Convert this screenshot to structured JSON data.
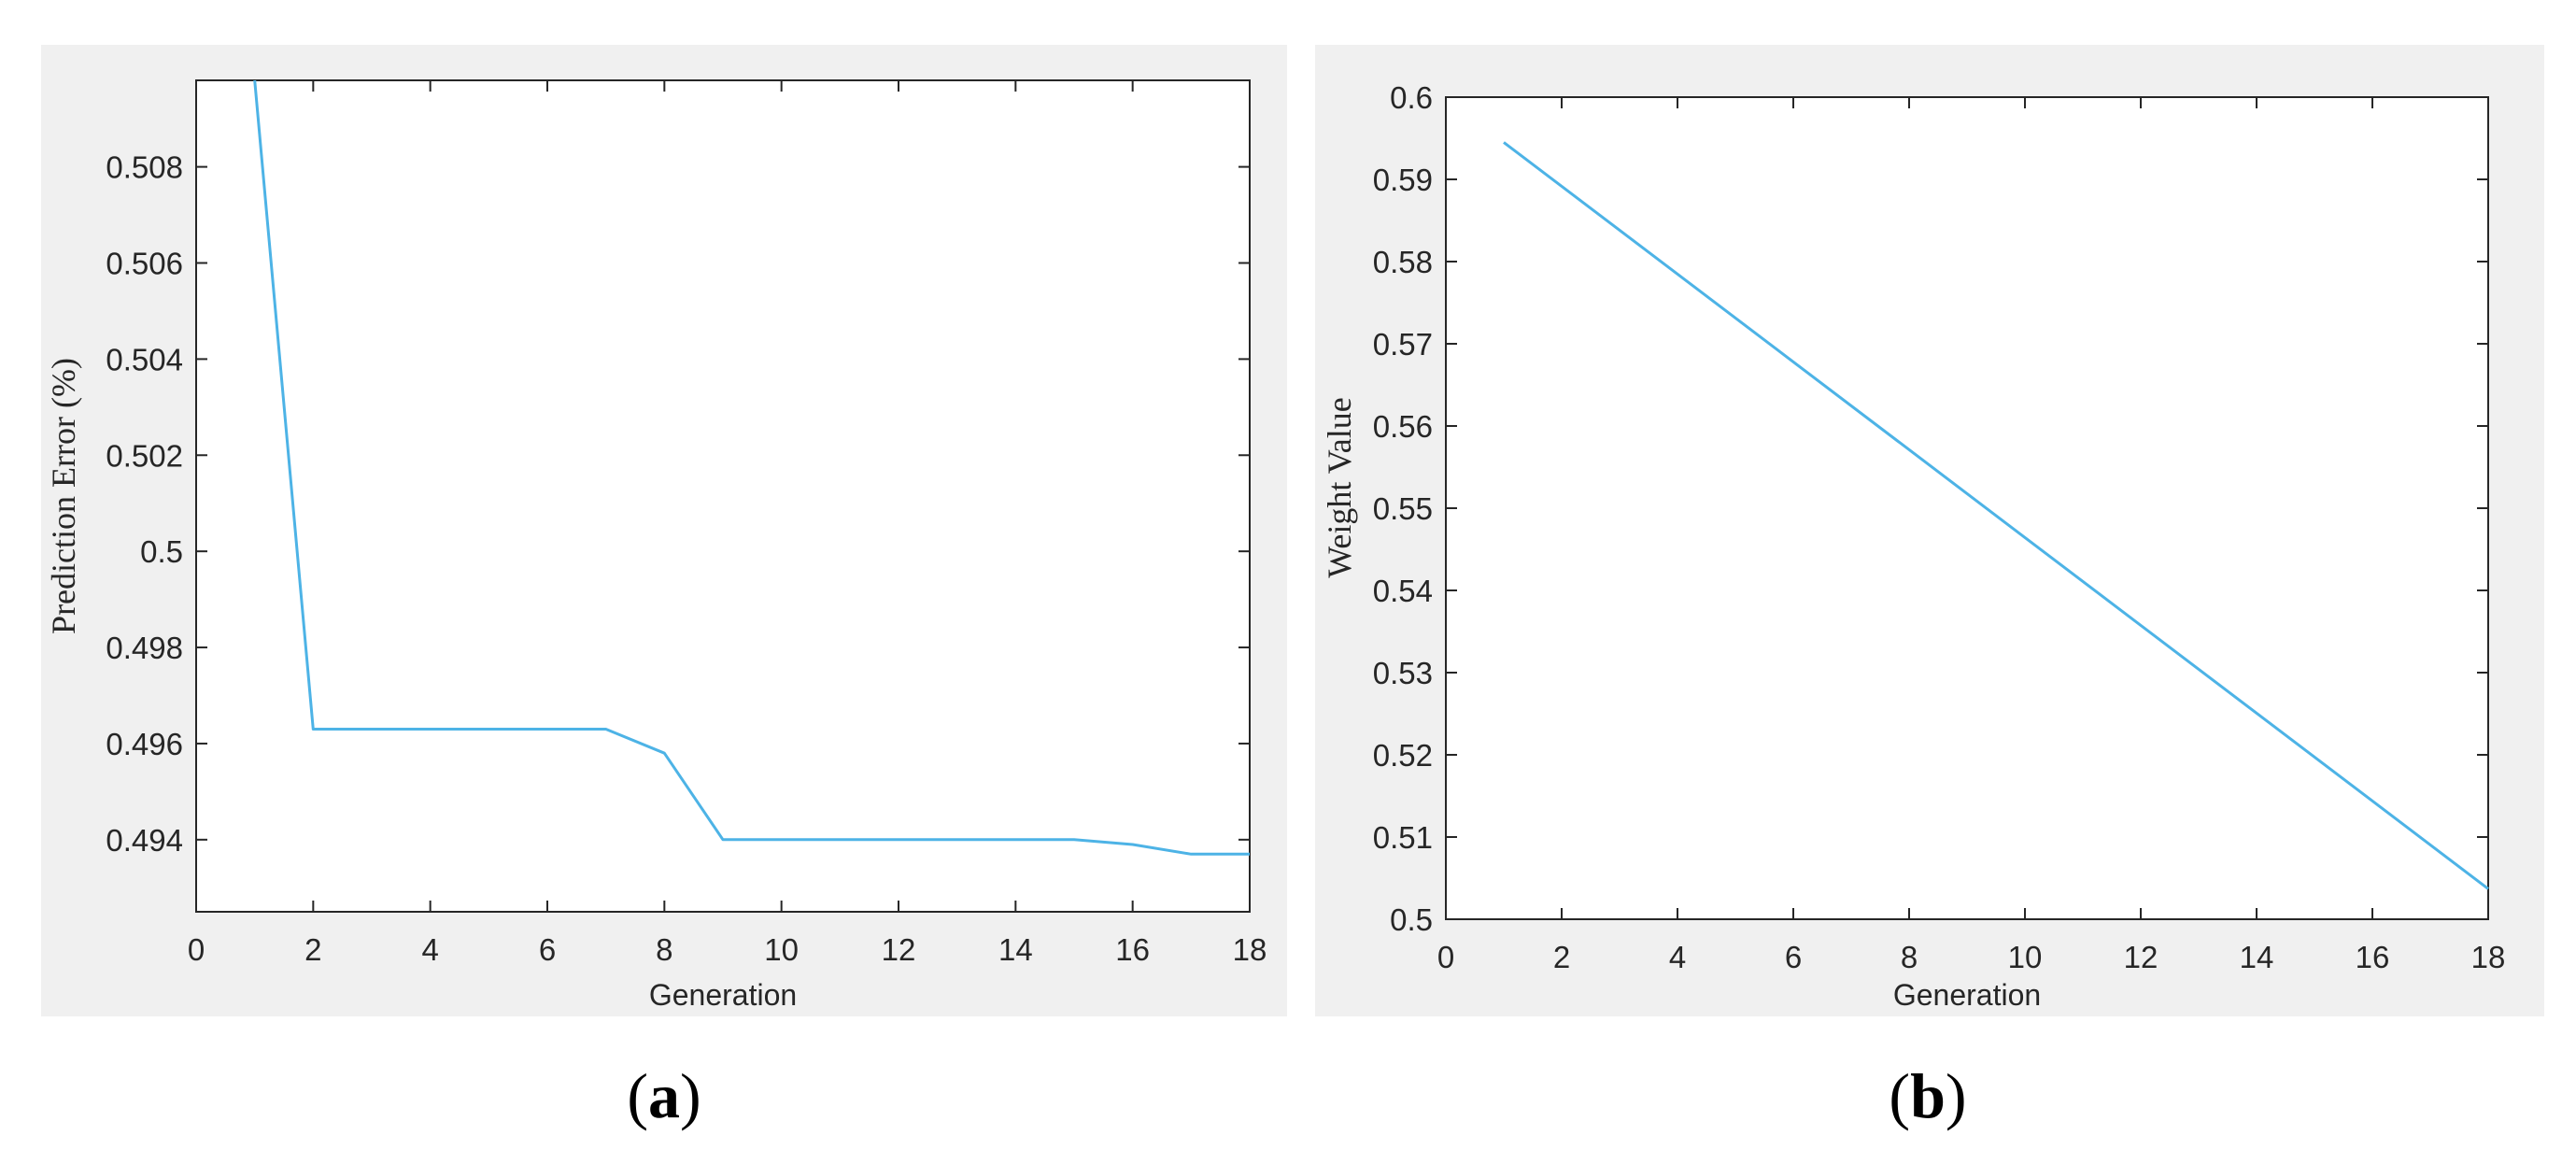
{
  "figure": {
    "captions": [
      "(a)",
      "(b)"
    ],
    "caption_parts": [
      {
        "open": "(",
        "letter": "a",
        "close": ")"
      },
      {
        "open": "(",
        "letter": "b",
        "close": ")"
      }
    ]
  },
  "chart_data": [
    {
      "type": "line",
      "panel": "a",
      "title": "",
      "xlabel": "Generation",
      "ylabel": "Prediction Error (%)",
      "xlim": [
        0,
        18
      ],
      "ylim": [
        0.4925,
        0.5098
      ],
      "xticks": [
        0,
        2,
        4,
        6,
        8,
        10,
        12,
        14,
        16,
        18
      ],
      "yticks": [
        0.494,
        0.496,
        0.498,
        0.5,
        0.502,
        0.504,
        0.506,
        0.508
      ],
      "ytick_labels": [
        "0.494",
        "0.496",
        "0.498",
        "0.5",
        "0.502",
        "0.504",
        "0.506",
        "0.508"
      ],
      "grid": false,
      "color": "#4db3e6",
      "series": [
        {
          "x": [
            1,
            2,
            3,
            4,
            5,
            6,
            7,
            8,
            9,
            10,
            11,
            12,
            13,
            14,
            15,
            16,
            17,
            18
          ],
          "values": [
            0.5098,
            0.4963,
            0.4963,
            0.4963,
            0.4963,
            0.4963,
            0.4963,
            0.4958,
            0.494,
            0.494,
            0.494,
            0.494,
            0.494,
            0.494,
            0.494,
            0.4939,
            0.4937,
            0.4937
          ]
        }
      ]
    },
    {
      "type": "line",
      "panel": "b",
      "title": "",
      "xlabel": "Generation",
      "ylabel": "Weight Value",
      "xlim": [
        0,
        18
      ],
      "ylim": [
        0.5,
        0.6
      ],
      "xticks": [
        0,
        2,
        4,
        6,
        8,
        10,
        12,
        14,
        16,
        18
      ],
      "yticks": [
        0.5,
        0.51,
        0.52,
        0.53,
        0.54,
        0.55,
        0.56,
        0.57,
        0.58,
        0.59,
        0.6
      ],
      "ytick_labels": [
        "0.5",
        "0.51",
        "0.52",
        "0.53",
        "0.54",
        "0.55",
        "0.56",
        "0.57",
        "0.58",
        "0.59",
        "0.6"
      ],
      "grid": false,
      "color": "#4db3e6",
      "series": [
        {
          "x": [
            1,
            18
          ],
          "values": [
            0.5945,
            0.5037
          ]
        }
      ]
    }
  ]
}
